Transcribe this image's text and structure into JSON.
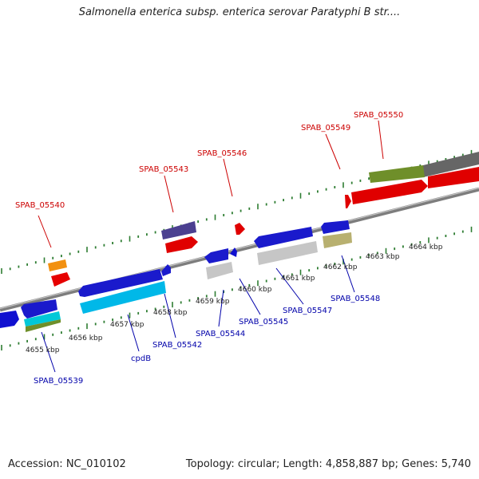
{
  "header": {
    "title": "Salmonella enterica subsp. enterica serovar Paratyphi B str...."
  },
  "footer": {
    "accession": "Accession: NC_010102",
    "summary": "Topology: circular; Length: 4,858,887 bp; Genes: 5,740"
  },
  "colors": {
    "forward_label": "#cc0000",
    "reverse_label": "#0000aa",
    "backbone": "#8a8a8a",
    "tick": "#2e7d32"
  },
  "scale_labels": [
    "4655 kbp",
    "4656 kbp",
    "4657 kbp",
    "4658 kbp",
    "4659 kbp",
    "4660 kbp",
    "4661 kbp",
    "4662 kbp",
    "4663 kbp",
    "4664 kbp"
  ],
  "genes": {
    "top": [
      "SPAB_05540",
      "SPAB_05543",
      "SPAB_05546",
      "SPAB_05549",
      "SPAB_05550"
    ],
    "bottom": [
      "SPAB_05539",
      "cpdB",
      "SPAB_05542",
      "SPAB_05544",
      "SPAB_05545",
      "SPAB_05547",
      "SPAB_05548"
    ]
  }
}
